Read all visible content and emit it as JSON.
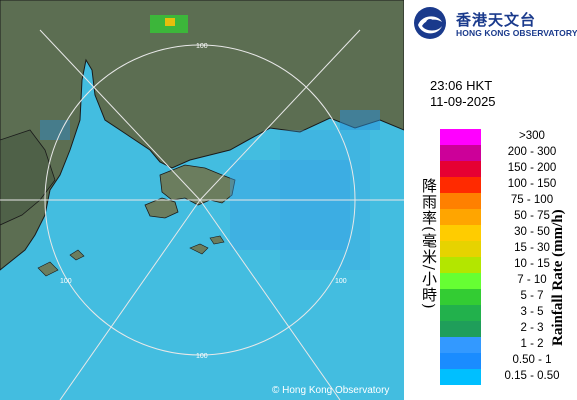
{
  "map": {
    "credit": "© Hong Kong Observatory",
    "range_ring_labels": [
      "100",
      "100",
      "100",
      "100"
    ],
    "colors": {
      "sea": "#43bde0",
      "land": "#5c6e52",
      "coast": "#1a1a1a",
      "rings": "#e8e8e8"
    }
  },
  "logo": {
    "text_zh": "香港天文台",
    "text_en": "HONG KONG OBSERVATORY",
    "icon": "observatory-logo-icon"
  },
  "timestamp": {
    "time": "23:06 HKT",
    "date": "11-09-2025"
  },
  "legend": {
    "title_zh": "降雨率(毫米/小時)",
    "title_en": "Rainfall Rate (mm/h)",
    "items": [
      {
        "label": ">300",
        "color": "#ff00ff"
      },
      {
        "label": "200 - 300",
        "color": "#cc0099"
      },
      {
        "label": "150 - 200",
        "color": "#e60033"
      },
      {
        "label": "100 - 150",
        "color": "#ff2a00"
      },
      {
        "label": "75 - 100",
        "color": "#ff8000"
      },
      {
        "label": "50 - 75",
        "color": "#ffa500"
      },
      {
        "label": "30 - 50",
        "color": "#ffcc00"
      },
      {
        "label": "15 - 30",
        "color": "#e6d300"
      },
      {
        "label": "10 - 15",
        "color": "#b3e600"
      },
      {
        "label": "7 - 10",
        "color": "#66ff33"
      },
      {
        "label": "5 - 7",
        "color": "#33cc33"
      },
      {
        "label": "3 - 5",
        "color": "#22b14c"
      },
      {
        "label": "2 - 3",
        "color": "#1f9e5a"
      },
      {
        "label": "1 - 2",
        "color": "#3399ff"
      },
      {
        "label": "0.50 - 1",
        "color": "#1a8cff"
      },
      {
        "label": "0.15 - 0.50",
        "color": "#00bfff"
      }
    ]
  }
}
